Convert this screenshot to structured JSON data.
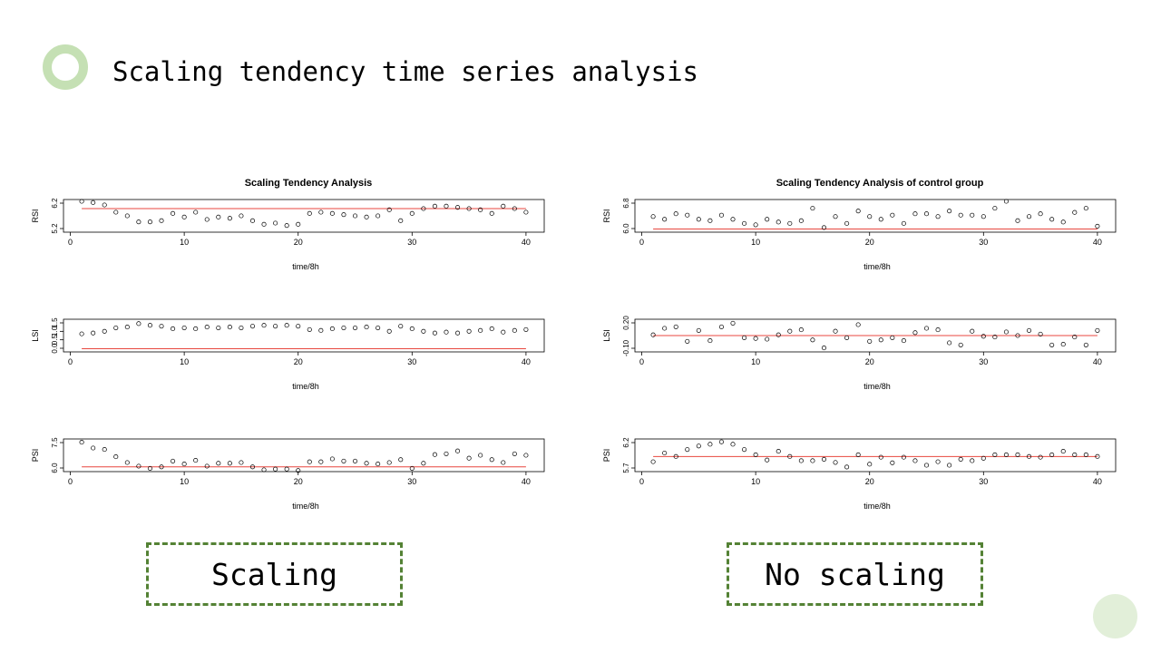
{
  "slide": {
    "title": "Scaling tendency time series analysis",
    "labels": [
      "Scaling",
      "No scaling"
    ]
  },
  "colors": {
    "accent_ring": "#c5e0b4",
    "tag_border": "#548235",
    "fit_line": "#e8473f",
    "deco_circle": "#e2efd9"
  },
  "chart_data": [
    {
      "type": "scatter",
      "title": "Scaling Tendency Analysis",
      "panels": [
        {
          "ylabel": "RSI",
          "xlabel": "time/8h",
          "ylim": [
            5.2,
            6.4
          ],
          "yticks": [
            "5.2",
            "6.2"
          ],
          "xticks": [
            0,
            10,
            20,
            30,
            40
          ],
          "fit": 6.1,
          "x": [
            1,
            2,
            3,
            4,
            5,
            6,
            7,
            8,
            9,
            10,
            11,
            12,
            13,
            14,
            15,
            16,
            17,
            18,
            19,
            20,
            21,
            22,
            23,
            24,
            25,
            26,
            27,
            28,
            29,
            30,
            31,
            32,
            33,
            34,
            35,
            36,
            37,
            38,
            39,
            40
          ],
          "y": [
            6.4,
            6.35,
            6.25,
            5.95,
            5.8,
            5.55,
            5.55,
            5.6,
            5.9,
            5.75,
            5.95,
            5.65,
            5.75,
            5.7,
            5.8,
            5.6,
            5.45,
            5.5,
            5.4,
            5.45,
            5.9,
            5.95,
            5.9,
            5.85,
            5.8,
            5.75,
            5.8,
            6.05,
            5.6,
            5.9,
            6.1,
            6.2,
            6.2,
            6.15,
            6.1,
            6.05,
            5.9,
            6.2,
            6.1,
            5.95
          ]
        },
        {
          "ylabel": "LSI",
          "xlabel": "time/8h",
          "ylim": [
            0.0,
            1.7
          ],
          "yticks": [
            "0.0",
            "0.5",
            "1.0",
            "1.5"
          ],
          "xticks": [
            0,
            10,
            20,
            30,
            40
          ],
          "fit": 0.08,
          "x": [
            1,
            2,
            3,
            4,
            5,
            6,
            7,
            8,
            9,
            10,
            11,
            12,
            13,
            14,
            15,
            16,
            17,
            18,
            19,
            20,
            21,
            22,
            23,
            24,
            25,
            26,
            27,
            28,
            29,
            30,
            31,
            32,
            33,
            34,
            35,
            36,
            37,
            38,
            39,
            40
          ],
          "y": [
            0.95,
            1.0,
            1.1,
            1.3,
            1.35,
            1.55,
            1.45,
            1.4,
            1.25,
            1.3,
            1.25,
            1.35,
            1.3,
            1.35,
            1.3,
            1.4,
            1.45,
            1.4,
            1.45,
            1.4,
            1.2,
            1.15,
            1.25,
            1.3,
            1.3,
            1.35,
            1.3,
            1.1,
            1.4,
            1.25,
            1.1,
            1.0,
            1.05,
            1.0,
            1.1,
            1.15,
            1.25,
            1.05,
            1.15,
            1.2
          ]
        },
        {
          "ylabel": "PSI",
          "xlabel": "time/8h",
          "ylim": [
            5.8,
            7.8
          ],
          "yticks": [
            "6.0",
            "7.5"
          ],
          "xticks": [
            0,
            10,
            20,
            30,
            40
          ],
          "fit": 6.0,
          "x": [
            1,
            2,
            3,
            4,
            5,
            6,
            7,
            8,
            9,
            10,
            11,
            12,
            13,
            14,
            15,
            16,
            17,
            18,
            19,
            20,
            21,
            22,
            23,
            24,
            25,
            26,
            27,
            28,
            29,
            30,
            31,
            32,
            33,
            34,
            35,
            36,
            37,
            38,
            39,
            40
          ],
          "y": [
            7.7,
            7.3,
            7.2,
            6.7,
            6.3,
            6.05,
            5.9,
            6.0,
            6.4,
            6.2,
            6.45,
            6.05,
            6.25,
            6.25,
            6.3,
            6.0,
            5.8,
            5.85,
            5.85,
            5.75,
            6.35,
            6.35,
            6.55,
            6.4,
            6.4,
            6.25,
            6.2,
            6.3,
            6.5,
            5.9,
            6.25,
            6.85,
            6.9,
            7.1,
            6.6,
            6.8,
            6.5,
            6.3,
            6.9,
            6.8
          ]
        }
      ]
    },
    {
      "type": "scatter",
      "title": "Scaling Tendency Analysis of control group",
      "panels": [
        {
          "ylabel": "RSI",
          "xlabel": "time/8h",
          "ylim": [
            5.95,
            7.0
          ],
          "yticks": [
            "6.0",
            "6.8"
          ],
          "xticks": [
            0,
            10,
            20,
            30,
            40
          ],
          "fit": 6.0,
          "x": [
            1,
            2,
            3,
            4,
            5,
            6,
            7,
            8,
            9,
            10,
            11,
            12,
            13,
            14,
            15,
            16,
            17,
            18,
            19,
            20,
            21,
            22,
            23,
            24,
            25,
            26,
            27,
            28,
            29,
            30,
            31,
            32,
            33,
            34,
            35,
            36,
            37,
            38,
            39,
            40
          ],
          "y": [
            6.45,
            6.35,
            6.55,
            6.5,
            6.35,
            6.3,
            6.5,
            6.35,
            6.2,
            6.15,
            6.35,
            6.25,
            6.2,
            6.3,
            6.75,
            6.05,
            6.45,
            6.2,
            6.65,
            6.45,
            6.35,
            6.5,
            6.2,
            6.55,
            6.55,
            6.45,
            6.65,
            6.5,
            6.5,
            6.45,
            6.75,
            7.0,
            6.3,
            6.45,
            6.55,
            6.35,
            6.25,
            6.6,
            6.75,
            6.1
          ]
        },
        {
          "ylabel": "LSI",
          "xlabel": "time/8h",
          "ylim": [
            -0.15,
            0.25
          ],
          "yticks": [
            "-0.10",
            "0.20"
          ],
          "xticks": [
            0,
            10,
            20,
            30,
            40
          ],
          "fit": 0.05,
          "x": [
            1,
            2,
            3,
            4,
            5,
            6,
            7,
            8,
            9,
            10,
            11,
            12,
            13,
            14,
            15,
            16,
            17,
            18,
            19,
            20,
            21,
            22,
            23,
            24,
            25,
            26,
            27,
            28,
            29,
            30,
            31,
            32,
            33,
            34,
            35,
            36,
            37,
            38,
            39,
            40
          ],
          "y": [
            0.06,
            0.15,
            0.17,
            -0.03,
            0.12,
            -0.02,
            0.17,
            0.22,
            0.02,
            0.01,
            0.0,
            0.06,
            0.11,
            0.13,
            -0.01,
            -0.12,
            0.11,
            0.02,
            0.2,
            -0.03,
            -0.01,
            0.02,
            -0.02,
            0.09,
            0.15,
            0.13,
            -0.05,
            -0.08,
            0.11,
            0.04,
            0.03,
            0.1,
            0.05,
            0.12,
            0.07,
            -0.08,
            -0.07,
            0.03,
            -0.08,
            0.12
          ]
        },
        {
          "ylabel": "PSI",
          "xlabel": "time/8h",
          "ylim": [
            5.62,
            6.45
          ],
          "yticks": [
            "5.7",
            "6.2"
          ],
          "xticks": [
            0,
            10,
            20,
            30,
            40
          ],
          "fit": 6.0,
          "x": [
            1,
            2,
            3,
            4,
            5,
            6,
            7,
            8,
            9,
            10,
            11,
            12,
            13,
            14,
            15,
            16,
            17,
            18,
            19,
            20,
            21,
            22,
            23,
            24,
            25,
            26,
            27,
            28,
            29,
            30,
            31,
            32,
            33,
            34,
            35,
            36,
            37,
            38,
            39,
            40
          ],
          "y": [
            5.85,
            6.1,
            6.0,
            6.2,
            6.3,
            6.35,
            6.42,
            6.35,
            6.2,
            6.05,
            5.9,
            6.15,
            6.0,
            5.88,
            5.88,
            5.92,
            5.83,
            5.7,
            6.05,
            5.78,
            5.98,
            5.82,
            5.98,
            5.88,
            5.75,
            5.85,
            5.75,
            5.92,
            5.88,
            5.95,
            6.05,
            6.05,
            6.05,
            6.0,
            5.98,
            6.05,
            6.15,
            6.05,
            6.05,
            6.0
          ]
        }
      ]
    }
  ]
}
